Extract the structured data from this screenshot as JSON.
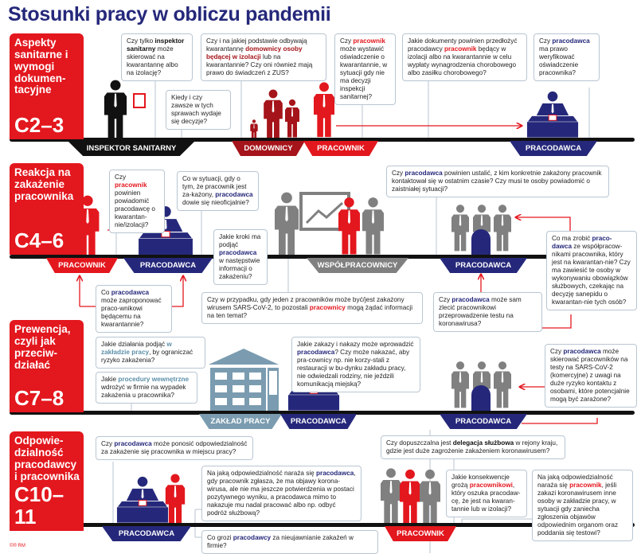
{
  "title": "Stosunki pracy w obliczu pandemii",
  "colors": {
    "red": "#e3171e",
    "navy": "#25287a",
    "gray": "#808080",
    "dark_red": "#a5141a",
    "building": "#7b9cb0",
    "black": "#111111"
  },
  "footer": "©® RM",
  "sections": [
    {
      "heading": "Aspekty sanitarne i wymogi dokumen-tacyjne",
      "code": "C2–3",
      "labels": [
        "INSPEKTOR SANITARNY",
        "DOMOWNICY",
        "PRACOWNIK",
        "PRACODAWCA"
      ],
      "questions": [
        {
          "parts": [
            {
              "t": "Czy tylko "
            },
            {
              "t": "inspektor sanitarny",
              "h": "bold"
            },
            {
              "t": " może skierować na kwarantannę albo na izolację?"
            }
          ]
        },
        {
          "parts": [
            {
              "t": "Kiedy i czy zawsze w tych sprawach wydaje się decyzje?"
            }
          ]
        },
        {
          "parts": [
            {
              "t": "Czy i na jakiej podstawie odbywają kwarantannę "
            },
            {
              "t": "domownicy osoby będącej w izolacji",
              "h": "darkred"
            },
            {
              "t": " lub na kwarantannie? Czy oni również mają prawo do świadczeń z ZUS?"
            }
          ]
        },
        {
          "parts": [
            {
              "t": "Czy "
            },
            {
              "t": "pracownik",
              "h": "red"
            },
            {
              "t": " może wystawić oświadczenie o kwarantannie, w sytuacji gdy nie ma decyzji inspekcji sanitarnej?"
            }
          ]
        },
        {
          "parts": [
            {
              "t": "Jakie dokumenty powinien przedłożyć pracodawcy "
            },
            {
              "t": "pracownik",
              "h": "red"
            },
            {
              "t": " będący w izolacji albo na kwarantannie w celu wypłaty wynagrodzenia chorobowego albo zasiłku chorobowego?"
            }
          ]
        },
        {
          "parts": [
            {
              "t": "Czy "
            },
            {
              "t": "pracodawca",
              "h": "navy"
            },
            {
              "t": " ma prawo weryfikować oświadczenie pracownika?"
            }
          ]
        }
      ]
    },
    {
      "heading": "Reakcja na zakażenie pracownika",
      "code": "C4–6",
      "labels": [
        "PRACOWNIK",
        "PRACODAWCA",
        "WSPÓŁPRACOWNICY",
        "PRACODAWCA"
      ],
      "questions": [
        {
          "parts": [
            {
              "t": "Czy "
            },
            {
              "t": "pracownik",
              "h": "red"
            },
            {
              "t": " powinien powiadomić pracodawcę o kwarantan-nie/izolacji?"
            }
          ]
        },
        {
          "parts": [
            {
              "t": "Co w sytuacji, gdy o tym, że pracownik jest za-każony, "
            },
            {
              "t": "pracodawca",
              "h": "navy"
            },
            {
              "t": " dowie się nieoficjalnie?"
            }
          ]
        },
        {
          "parts": [
            {
              "t": "Jakie kroki ma podjąć "
            },
            {
              "t": "pracodawca",
              "h": "navy"
            },
            {
              "t": " w następstwie informacji o zakażeniu?"
            }
          ]
        },
        {
          "parts": [
            {
              "t": "Czy "
            },
            {
              "t": "pracodawca",
              "h": "navy"
            },
            {
              "t": " powinien ustalić, z kim konkretnie zakażony pracownik kontaktował się w ostatnim czasie? Czy musi te osoby powiadomić o zaistniałej sytuacji?"
            }
          ]
        },
        {
          "parts": [
            {
              "t": "Co "
            },
            {
              "t": "pracodawca",
              "h": "navy"
            },
            {
              "t": " może zaproponować praco-wnikowi będącemu na kwarantannie?"
            }
          ]
        },
        {
          "parts": [
            {
              "t": "Czy w przypadku, gdy jeden z pracowników może być/jest zakażony wirusem SARS-CoV-2, to pozostali "
            },
            {
              "t": "pracownicy",
              "h": "red"
            },
            {
              "t": " mogą żądać informacji na ten temat?"
            }
          ]
        },
        {
          "parts": [
            {
              "t": "Czy "
            },
            {
              "t": "pracodawca",
              "h": "navy"
            },
            {
              "t": " może sam zlecić pracownikowi przeprowadzenie testu na koronawirusa?"
            }
          ]
        },
        {
          "parts": [
            {
              "t": "Co ma zrobić "
            },
            {
              "t": "praco-dawca",
              "h": "navy"
            },
            {
              "t": " ze współpracow-nikami pracownika, który jest na kwarantan-nie? Czy ma zawiesić te osoby w wykonywaniu obowiązków służbowych, czekając na decyzję sanepidu o kwarantan-nie tych osób?"
            }
          ]
        }
      ]
    },
    {
      "heading": "Prewencja, czyli jak przeciw-działać",
      "code": "C7–8",
      "labels": [
        "ZAKŁAD PRACY",
        "PRACODAWCA",
        "PRACODAWCA"
      ],
      "questions": [
        {
          "parts": [
            {
              "t": "Jakie działania podjąć "
            },
            {
              "t": "w zakładzie pracy",
              "h": "teal"
            },
            {
              "t": ", by ograniczać ryzyko zakażenia?"
            }
          ]
        },
        {
          "parts": [
            {
              "t": "Jakie "
            },
            {
              "t": "procedury wewnętrzne",
              "h": "teal"
            },
            {
              "t": " wdrożyć w firmie na wypadek zakażenia u pracownika?"
            }
          ]
        },
        {
          "parts": [
            {
              "t": "Jakie zakazy i nakazy może wprowadzić "
            },
            {
              "t": "pracodawca",
              "h": "navy"
            },
            {
              "t": "? Czy może nakazać, aby pra-cownicy np. nie korzy-stali z restauracji w bu-dynku zakładu pracy, nie odwiedzali rodziny, nie jeździli komunikacją miejską?"
            }
          ]
        },
        {
          "parts": [
            {
              "t": "Czy "
            },
            {
              "t": "pracodawca",
              "h": "navy"
            },
            {
              "t": " może skierować pracowników na testy na SARS-CoV-2 (komercyjne) z uwagi na duże ryzyko kontaktu z osobami, które potencjalnie mogą być zarażone?"
            }
          ]
        }
      ]
    },
    {
      "heading": "Odpowie-dzialność pracodawcy i pracownika",
      "code": "C10–11",
      "labels": [
        "PRACODAWCA",
        "PRACOWNIK"
      ],
      "questions": [
        {
          "parts": [
            {
              "t": "Czy "
            },
            {
              "t": "pracodawca",
              "h": "navy"
            },
            {
              "t": " może ponosić odpowiedzialność za zakażenie się pracownika w miejscu pracy?"
            }
          ]
        },
        {
          "parts": [
            {
              "t": "Na jaką odpowiedzialność naraża się "
            },
            {
              "t": "pracodawca",
              "h": "navy"
            },
            {
              "t": ", gdy pracownik zgłasza, że ma objawy korona-wirusa, ale nie ma jeszcze potwierdzenia w postaci pozytywnego wyniku, a pracodawca mimo to nakazuje mu nadal pracować albo np. odbyć podróż służbową?"
            }
          ]
        },
        {
          "parts": [
            {
              "t": "Co grozi "
            },
            {
              "t": "pracodawcy",
              "h": "navy"
            },
            {
              "t": " za nieujawnianie zakażeń w firmie?"
            }
          ]
        },
        {
          "parts": [
            {
              "t": "Czy dopuszczalna jest "
            },
            {
              "t": "delegacja służbowa",
              "h": "bold"
            },
            {
              "t": " w rejony kraju, gdzie jest duże zagrożenie zakażeniem koronawirusem?"
            }
          ]
        },
        {
          "parts": [
            {
              "t": "Jakie konsekwencje grożą "
            },
            {
              "t": "pracownikowi",
              "h": "red"
            },
            {
              "t": ", który oszuka pracodaw-cę, że jest na kwaran-tannie lub w izolacji?"
            }
          ]
        },
        {
          "parts": [
            {
              "t": "Na jaką odpowiedzialność naraża się "
            },
            {
              "t": "pracownik",
              "h": "red"
            },
            {
              "t": ", jeśli zakazi koronawirusem inne osoby w zakładzie pracy, w sytuacji gdy zaniecha zgłoszenia objawów odpowiednim organom oraz poddania się testowi?"
            }
          ]
        }
      ]
    }
  ]
}
